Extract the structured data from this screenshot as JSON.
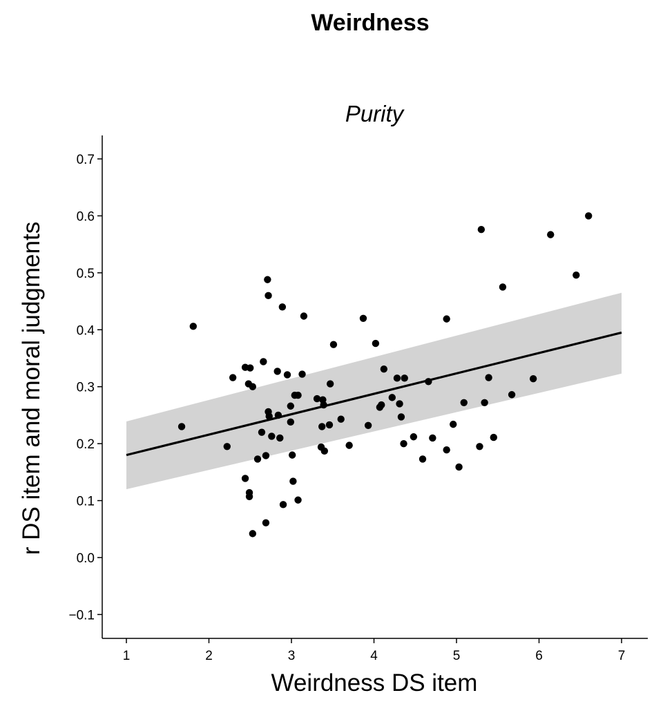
{
  "title": "Weirdness",
  "chart_data": {
    "type": "scatter",
    "title": "Purity",
    "xlabel": "Weirdness DS item",
    "ylabel": "r DS item and moral judgments",
    "xlim": [
      0.7,
      7.3
    ],
    "ylim": [
      -0.14,
      0.74
    ],
    "xticks": [
      1,
      2,
      3,
      4,
      5,
      6,
      7
    ],
    "yticks": [
      -0.1,
      0.0,
      0.1,
      0.2,
      0.3,
      0.4,
      0.5,
      0.6,
      0.7
    ],
    "xtick_labels": [
      "1",
      "2",
      "3",
      "4",
      "5",
      "6",
      "7"
    ],
    "ytick_labels": [
      "−0.1",
      "0.0",
      "0.1",
      "0.2",
      "0.3",
      "0.4",
      "0.5",
      "0.6",
      "0.7"
    ],
    "grid": false,
    "colors": {
      "points": "#000000",
      "fit_line": "#000000",
      "confidence_band": "#d3d3d3"
    },
    "fit": {
      "x": [
        1,
        7
      ],
      "y": [
        0.18,
        0.395
      ],
      "ci_lower": [
        0.12,
        0.323
      ],
      "ci_upper": [
        0.239,
        0.465
      ]
    },
    "points": [
      {
        "x": 1.67,
        "y": 0.23
      },
      {
        "x": 1.81,
        "y": 0.406
      },
      {
        "x": 2.22,
        "y": 0.195
      },
      {
        "x": 2.29,
        "y": 0.316
      },
      {
        "x": 2.44,
        "y": 0.334
      },
      {
        "x": 2.48,
        "y": 0.305
      },
      {
        "x": 2.5,
        "y": 0.333
      },
      {
        "x": 2.53,
        "y": 0.3
      },
      {
        "x": 2.44,
        "y": 0.139
      },
      {
        "x": 2.49,
        "y": 0.107
      },
      {
        "x": 2.49,
        "y": 0.114
      },
      {
        "x": 2.53,
        "y": 0.042
      },
      {
        "x": 2.59,
        "y": 0.173
      },
      {
        "x": 2.64,
        "y": 0.22
      },
      {
        "x": 2.66,
        "y": 0.344
      },
      {
        "x": 2.69,
        "y": 0.179
      },
      {
        "x": 2.69,
        "y": 0.061
      },
      {
        "x": 2.71,
        "y": 0.488
      },
      {
        "x": 2.72,
        "y": 0.46
      },
      {
        "x": 2.72,
        "y": 0.256
      },
      {
        "x": 2.73,
        "y": 0.248
      },
      {
        "x": 2.76,
        "y": 0.213
      },
      {
        "x": 2.83,
        "y": 0.327
      },
      {
        "x": 2.84,
        "y": 0.25
      },
      {
        "x": 2.86,
        "y": 0.21
      },
      {
        "x": 2.89,
        "y": 0.44
      },
      {
        "x": 2.9,
        "y": 0.093
      },
      {
        "x": 2.95,
        "y": 0.321
      },
      {
        "x": 2.99,
        "y": 0.266
      },
      {
        "x": 2.99,
        "y": 0.238
      },
      {
        "x": 3.01,
        "y": 0.18
      },
      {
        "x": 3.02,
        "y": 0.134
      },
      {
        "x": 3.04,
        "y": 0.285
      },
      {
        "x": 3.08,
        "y": 0.285
      },
      {
        "x": 3.08,
        "y": 0.101
      },
      {
        "x": 3.13,
        "y": 0.322
      },
      {
        "x": 3.15,
        "y": 0.424
      },
      {
        "x": 3.31,
        "y": 0.279
      },
      {
        "x": 3.37,
        "y": 0.23
      },
      {
        "x": 3.36,
        "y": 0.194
      },
      {
        "x": 3.38,
        "y": 0.277
      },
      {
        "x": 3.4,
        "y": 0.187
      },
      {
        "x": 3.39,
        "y": 0.268
      },
      {
        "x": 3.46,
        "y": 0.233
      },
      {
        "x": 3.47,
        "y": 0.305
      },
      {
        "x": 3.51,
        "y": 0.374
      },
      {
        "x": 3.6,
        "y": 0.243
      },
      {
        "x": 3.7,
        "y": 0.197
      },
      {
        "x": 3.87,
        "y": 0.42
      },
      {
        "x": 3.93,
        "y": 0.232
      },
      {
        "x": 4.02,
        "y": 0.376
      },
      {
        "x": 4.07,
        "y": 0.264
      },
      {
        "x": 4.09,
        "y": 0.268
      },
      {
        "x": 4.12,
        "y": 0.331
      },
      {
        "x": 4.22,
        "y": 0.281
      },
      {
        "x": 4.28,
        "y": 0.315
      },
      {
        "x": 4.31,
        "y": 0.27
      },
      {
        "x": 4.33,
        "y": 0.247
      },
      {
        "x": 4.36,
        "y": 0.2
      },
      {
        "x": 4.37,
        "y": 0.315
      },
      {
        "x": 4.48,
        "y": 0.212
      },
      {
        "x": 4.59,
        "y": 0.173
      },
      {
        "x": 4.66,
        "y": 0.309
      },
      {
        "x": 4.71,
        "y": 0.21
      },
      {
        "x": 4.88,
        "y": 0.419
      },
      {
        "x": 4.88,
        "y": 0.189
      },
      {
        "x": 4.96,
        "y": 0.234
      },
      {
        "x": 5.03,
        "y": 0.159
      },
      {
        "x": 5.09,
        "y": 0.272
      },
      {
        "x": 5.28,
        "y": 0.195
      },
      {
        "x": 5.3,
        "y": 0.576
      },
      {
        "x": 5.34,
        "y": 0.272
      },
      {
        "x": 5.39,
        "y": 0.316
      },
      {
        "x": 5.45,
        "y": 0.211
      },
      {
        "x": 5.56,
        "y": 0.475
      },
      {
        "x": 5.67,
        "y": 0.286
      },
      {
        "x": 5.93,
        "y": 0.314
      },
      {
        "x": 6.14,
        "y": 0.567
      },
      {
        "x": 6.45,
        "y": 0.496
      },
      {
        "x": 6.6,
        "y": 0.6
      }
    ]
  }
}
